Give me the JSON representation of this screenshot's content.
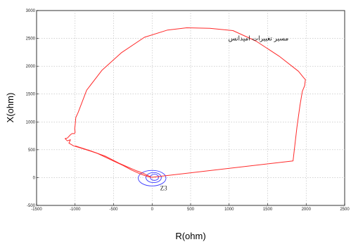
{
  "chart_data": {
    "type": "line",
    "xlabel": "R(ohm)",
    "ylabel": "X(ohm)",
    "xlim": [
      -1500,
      2500
    ],
    "ylim": [
      -500,
      3000
    ],
    "xticks": [
      "-1500",
      "-1000",
      "-500",
      "0",
      "500",
      "1000",
      "1500",
      "2000",
      "2500"
    ],
    "yticks": [
      "-500",
      "0",
      "500",
      "1000",
      "1500",
      "2000",
      "2500",
      "3000"
    ],
    "grid": true,
    "series_color": "#ff2a2a",
    "zone_color": "#3b3bff",
    "annotation": "مسیر تغییرات امپدانس",
    "zone_label": "Z3",
    "series": [
      {
        "x": [
          0,
          1830,
          1880,
          1920,
          1950,
          1980,
          1990,
          1970,
          1900,
          1650,
          1350,
          1050,
          750,
          450,
          200,
          -100,
          -400,
          -650,
          -850,
          -960,
          -990,
          -1000,
          -1005,
          -1000,
          -1010,
          -1040,
          -1060,
          -1100,
          -1130,
          -1100,
          -1060,
          -1080,
          -1020,
          -900,
          -720,
          -520,
          -380,
          -260,
          -160,
          -80,
          -30,
          0
        ],
        "y": [
          5,
          300,
          900,
          1300,
          1550,
          1650,
          1760,
          1790,
          1910,
          2180,
          2450,
          2640,
          2680,
          2690,
          2650,
          2520,
          2240,
          1930,
          1570,
          1170,
          1080,
          940,
          880,
          810,
          790,
          790,
          770,
          710,
          700,
          660,
          680,
          620,
          570,
          520,
          440,
          310,
          220,
          130,
          70,
          30,
          10,
          5
        ]
      },
      {
        "x": [
          -1000,
          -800,
          -600,
          -430,
          -300,
          -200,
          -120,
          -60,
          -20
        ],
        "y": [
          570,
          480,
          380,
          260,
          180,
          120,
          80,
          40,
          15
        ]
      }
    ],
    "zones": [
      {
        "cx": 0,
        "cy": -10,
        "rx": 180,
        "ry": 140
      },
      {
        "cx": 20,
        "cy": 0,
        "rx": 100,
        "ry": 90
      },
      {
        "cx": 30,
        "cy": 5,
        "rx": 55,
        "ry": 55
      }
    ]
  }
}
